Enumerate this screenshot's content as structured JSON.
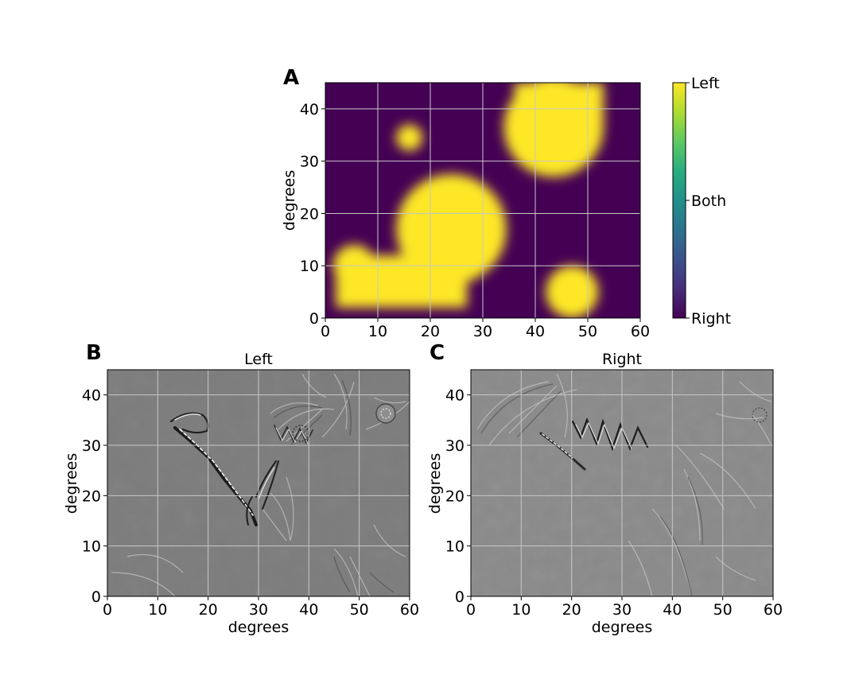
{
  "figure": {
    "panels": [
      {
        "id": "A",
        "label": "A",
        "title": "",
        "xlabel": "",
        "ylabel": "degrees"
      },
      {
        "id": "B",
        "label": "B",
        "title": "Left",
        "xlabel": "degrees",
        "ylabel": "degrees"
      },
      {
        "id": "C",
        "label": "C",
        "title": "Right",
        "xlabel": "degrees",
        "ylabel": "degrees"
      }
    ],
    "colorbar": {
      "colormap": "viridis",
      "tick_labels": [
        "Left",
        "Both",
        "Right"
      ]
    }
  },
  "chart_data": [
    {
      "type": "heatmap",
      "panel": "A",
      "title": "",
      "xlabel": "",
      "ylabel": "degrees",
      "xlim": [
        0,
        60
      ],
      "ylim": [
        0,
        45
      ],
      "xticks": [
        0,
        10,
        20,
        30,
        40,
        50,
        60
      ],
      "yticks": [
        0,
        10,
        20,
        30,
        40
      ],
      "grid": true,
      "colormap": "viridis",
      "colorbar_ticks": [
        {
          "value": 1.0,
          "label": "Left"
        },
        {
          "value": 0.5,
          "label": "Both"
        },
        {
          "value": 0.0,
          "label": "Right"
        }
      ],
      "regions": [
        {
          "assigned": "Left",
          "shape": "circle",
          "center": [
            24,
            17
          ],
          "radius": 10.5
        },
        {
          "assigned": "Left",
          "shape": "rect",
          "x": [
            2,
            27
          ],
          "y": [
            2,
            12
          ]
        },
        {
          "assigned": "Left",
          "shape": "circle",
          "center": [
            5.5,
            10
          ],
          "radius": 4
        },
        {
          "assigned": "Left",
          "shape": "circle",
          "center": [
            16,
            34.5
          ],
          "radius": 2.5
        },
        {
          "assigned": "Left",
          "shape": "circle",
          "center": [
            43.5,
            36.5
          ],
          "radius": 9.5
        },
        {
          "assigned": "Left",
          "shape": "rect",
          "x": [
            36,
            53
          ],
          "y": [
            36,
            45
          ]
        },
        {
          "assigned": "Left",
          "shape": "circle",
          "center": [
            47,
            5
          ],
          "radius": 5
        }
      ]
    },
    {
      "type": "heatmap",
      "panel": "B",
      "title": "Left",
      "xlabel": "degrees",
      "ylabel": "degrees",
      "xlim": [
        0,
        60
      ],
      "ylim": [
        0,
        45
      ],
      "xticks": [
        0,
        10,
        20,
        30,
        40,
        50,
        60
      ],
      "yticks": [
        0,
        10,
        20,
        30,
        40
      ],
      "grid": true,
      "colormap": "gray"
    },
    {
      "type": "heatmap",
      "panel": "C",
      "title": "Right",
      "xlabel": "degrees",
      "ylabel": "degrees",
      "xlim": [
        0,
        60
      ],
      "ylim": [
        0,
        45
      ],
      "xticks": [
        0,
        10,
        20,
        30,
        40,
        50,
        60
      ],
      "yticks": [
        0,
        10,
        20,
        30,
        40
      ],
      "grid": true,
      "colormap": "gray"
    }
  ],
  "colors": {
    "background_gray_left": "#7c7c7c",
    "background_gray_right": "#8a8a8a",
    "grid": "#c8c8c8"
  }
}
